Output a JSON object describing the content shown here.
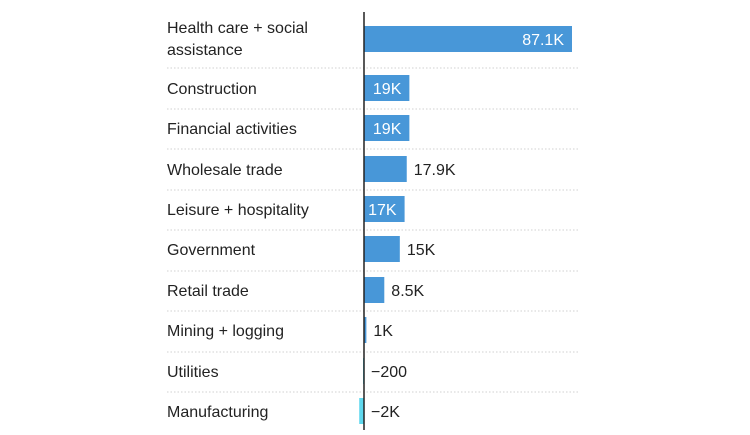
{
  "chart_data": {
    "type": "bar",
    "orientation": "horizontal",
    "categories": [
      [
        "Health care + social",
        "assistance"
      ],
      [
        "Construction"
      ],
      [
        "Financial activities"
      ],
      [
        "Wholesale trade"
      ],
      [
        "Leisure + hospitality"
      ],
      [
        "Government"
      ],
      [
        "Retail trade"
      ],
      [
        "Mining + logging"
      ],
      [
        "Utilities"
      ],
      [
        "Manufacturing"
      ]
    ],
    "values": [
      87100,
      19000,
      19000,
      17900,
      17000,
      15000,
      8500,
      1000,
      -200,
      -2000
    ],
    "data_labels": [
      "87.1K",
      "19K",
      "19K",
      "17.9K",
      "17K",
      "15K",
      "8.5K",
      "1K",
      "−200",
      "−2K"
    ],
    "label_inside": [
      true,
      true,
      true,
      false,
      true,
      false,
      false,
      false,
      false,
      false
    ],
    "xlim": [
      -2000,
      87100
    ],
    "grid": "dotted row separators",
    "colors": {
      "positive": "#4897d8",
      "negative": "#5fd8ee",
      "axis": "#222222",
      "grid": "#d0d0d0"
    }
  }
}
